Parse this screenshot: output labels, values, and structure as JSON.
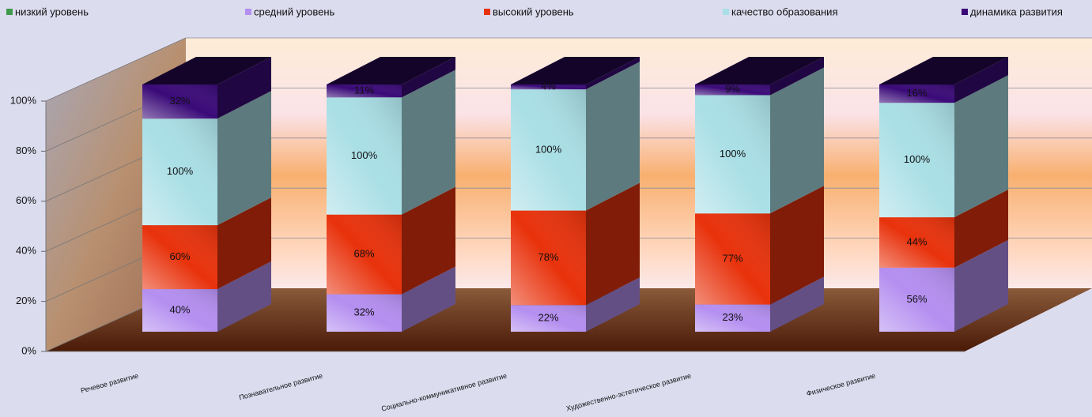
{
  "chart_data": {
    "type": "bar3d",
    "stack_mode": "percent",
    "categories": [
      "Речевое развитие",
      "Познавательное развитие",
      "Социально-коммуникативное развитие",
      "Художественно-эстетическое развитие",
      "Физическое развитие"
    ],
    "series": [
      {
        "name": "низкий уровень",
        "color": "#3f9a4a",
        "values": [
          0,
          0,
          0,
          0,
          0
        ]
      },
      {
        "name": "средний уровень",
        "color": "#b48ff0",
        "values": [
          40,
          32,
          22,
          23,
          56
        ],
        "value_labels": [
          "40%",
          "32%",
          "22%",
          "23%",
          "56%"
        ]
      },
      {
        "name": "высокий уровень",
        "color": "#e8320c",
        "values": [
          60,
          68,
          78,
          77,
          44
        ],
        "value_labels": [
          "60%",
          "68%",
          "78%",
          "77%",
          "44%"
        ]
      },
      {
        "name": "качество образования",
        "color": "#a9dfe6",
        "values": [
          100,
          100,
          100,
          100,
          100
        ],
        "value_labels": [
          "100%",
          "100%",
          "100%",
          "100%",
          "100%"
        ]
      },
      {
        "name": "динамика развития",
        "color": "#3a0a78",
        "values": [
          32,
          11,
          4,
          9,
          16
        ],
        "value_labels": [
          "32%",
          "11%",
          "4%",
          "9%",
          "16%"
        ]
      }
    ],
    "ylim": [
      0,
      100
    ],
    "yticks": [
      {
        "value": 0,
        "label": "0%"
      },
      {
        "value": 20,
        "label": "20%"
      },
      {
        "value": 40,
        "label": "40%"
      },
      {
        "value": 60,
        "label": "60%"
      },
      {
        "value": 80,
        "label": "80%"
      },
      {
        "value": 100,
        "label": "100%"
      }
    ],
    "grid": true
  }
}
